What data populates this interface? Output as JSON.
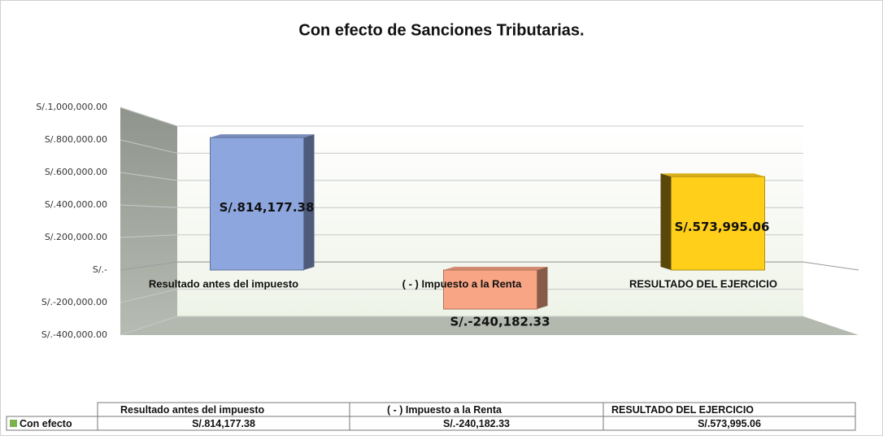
{
  "chart_data": {
    "type": "bar",
    "title": "Con efecto de Sanciones Tributarias.",
    "categories": [
      "Resultado antes del impuesto",
      "( - ) Impuesto a la Renta",
      "RESULTADO DEL EJERCICIO"
    ],
    "series": [
      {
        "name": "Con efecto",
        "color": "#7cb24c",
        "colors": [
          "#8ea6de",
          "#f8a585",
          "#ffcf1a"
        ],
        "values": [
          814177.38,
          -240182.33,
          573995.06
        ],
        "value_labels": [
          "S/.814,177.38",
          "S/.-240,182.33",
          "S/.573,995.06"
        ]
      }
    ],
    "ylim": [
      -400000,
      1000000
    ],
    "yticks": [
      {
        "value": -400000,
        "label": "S/.-400,000.00"
      },
      {
        "value": -200000,
        "label": "S/.-200,000.00"
      },
      {
        "value": 0,
        "label": "S/.-"
      },
      {
        "value": 200000,
        "label": "S/.200,000.00"
      },
      {
        "value": 400000,
        "label": "S/.400,000.00"
      },
      {
        "value": 600000,
        "label": "S/.600,000.00"
      },
      {
        "value": 800000,
        "label": "S/.800,000.00"
      },
      {
        "value": 1000000,
        "label": "S/.1,000,000.00"
      }
    ],
    "grid": true,
    "data_table": true
  }
}
